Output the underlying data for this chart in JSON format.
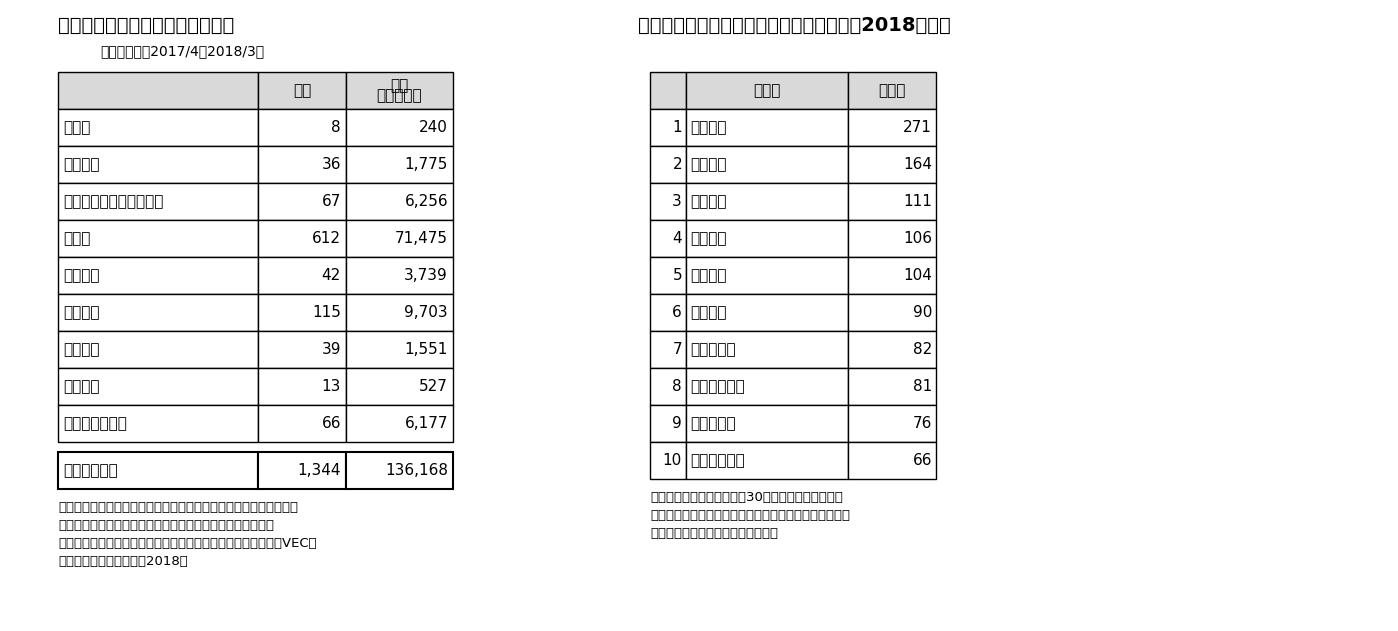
{
  "title1": "（図表４）ＶＣの地域別投資実績",
  "subtitle1": "＜対象期間：2017/4～2018/3＞",
  "table1_header": [
    "",
    "件数",
    "金額\n（百万円）"
  ],
  "table1_rows": [
    [
      "北海道",
      "8",
      "240"
    ],
    [
      "東北地方",
      "36",
      "1,775"
    ],
    [
      "関東地方（東京を除く）",
      "67",
      "6,256"
    ],
    [
      "東京都",
      "612",
      "71,475"
    ],
    [
      "中部地方",
      "42",
      "3,739"
    ],
    [
      "近畿地方",
      "115",
      "9,703"
    ],
    [
      "中国地方",
      "39",
      "1,551"
    ],
    [
      "四国地方",
      "13",
      "527"
    ],
    [
      "九州・沖縄地方",
      "66",
      "6,177"
    ]
  ],
  "table1_total": [
    "日本国内合計",
    "1,344",
    "136,168"
  ],
  "note1_lines": [
    "（注）アンケート調査において、地域別内訳を回答していないＶＣ",
    "　　　がいるため、地域別内訳と日本国内合計が一致しない",
    "（資料）一般財団法人ベンチャーエンタープライズセンター（VEC）",
    "　　　「ベンチャー白書2018」"
  ],
  "title2": "（図表５）大学発スタートアップ企業数（2018年度）",
  "table2_header": [
    "",
    "大学名",
    "企業数"
  ],
  "table2_rows": [
    [
      "1",
      "東京大学",
      "271"
    ],
    [
      "2",
      "京都大学",
      "164"
    ],
    [
      "3",
      "筑波大学",
      "111"
    ],
    [
      "4",
      "大阪大学",
      "106"
    ],
    [
      "5",
      "東北大学",
      "104"
    ],
    [
      "6",
      "九州大学",
      "90"
    ],
    [
      "7",
      "早稲田大学",
      "82"
    ],
    [
      "8",
      "慶應義塾大学",
      "81"
    ],
    [
      "9",
      "名古屋大学",
      "76"
    ],
    [
      "10",
      "東京工業大学",
      "66"
    ]
  ],
  "note2_lines": [
    "（資料）経済産業省「平成30年度産業技術調査事業",
    "　　　（大学発ベンチャー・研究シーズ実態等調査）」",
    "　　　よりニッセイ基礎研究所作成"
  ],
  "bg_color": "#ffffff",
  "header_bg": "#d9d9d9",
  "border_color": "#000000",
  "font_size": 11,
  "title_font_size": 14,
  "subtitle_font_size": 10,
  "note_font_size": 9.5
}
